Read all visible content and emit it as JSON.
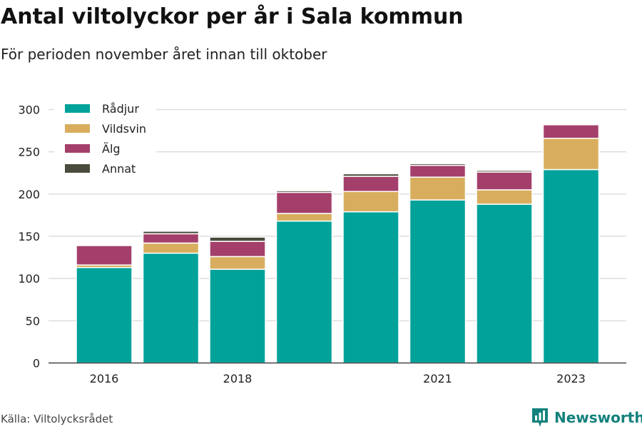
{
  "header": {
    "title": "Antal viltolyckor per år i Sala kommun",
    "subtitle": "För perioden november året innan till oktober"
  },
  "footer": {
    "source": "Källa: Viltolycksrådet",
    "brand": "Newsworthy",
    "brand_icon": "bar-chart-logo-icon",
    "brand_color": "#13817c"
  },
  "chart_data": {
    "type": "bar",
    "stacked": true,
    "categories": [
      "2016",
      "2017",
      "2018",
      "2019",
      "2020",
      "2021",
      "2022",
      "2023"
    ],
    "x_tick_labels": [
      "2016",
      "",
      "2018",
      "",
      "",
      "2021",
      "",
      "2023"
    ],
    "series": [
      {
        "name": "Rådjur",
        "color": "#00a29a",
        "values": [
          113,
          130,
          111,
          168,
          179,
          193,
          188,
          229
        ]
      },
      {
        "name": "Vildsvin",
        "color": "#d8ae5e",
        "values": [
          3,
          12,
          15,
          9,
          24,
          27,
          17,
          37
        ]
      },
      {
        "name": "Älg",
        "color": "#a33f6a",
        "values": [
          23,
          11,
          18,
          25,
          18,
          14,
          21,
          16
        ]
      },
      {
        "name": "Annat",
        "color": "#4b4b3d",
        "values": [
          0,
          3,
          5,
          2,
          3,
          2,
          2,
          0
        ]
      }
    ],
    "y_ticks": [
      0,
      50,
      100,
      150,
      200,
      250,
      300
    ],
    "ylim": [
      0,
      300
    ],
    "grid": true,
    "legend_position": "top-left"
  }
}
